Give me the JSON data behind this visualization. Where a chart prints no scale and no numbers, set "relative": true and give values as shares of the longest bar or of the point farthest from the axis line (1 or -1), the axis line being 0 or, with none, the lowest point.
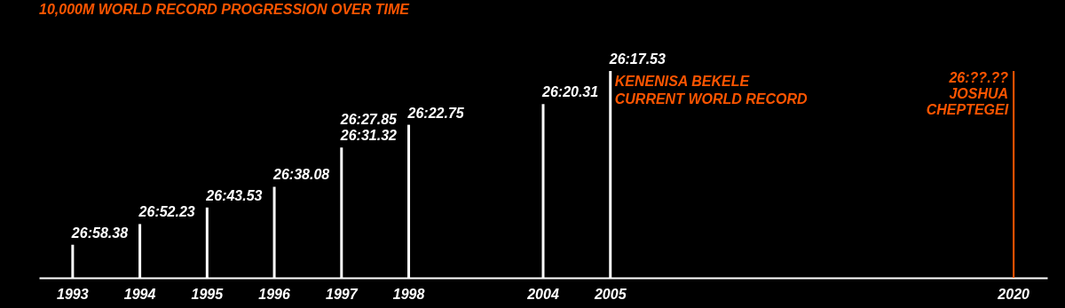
{
  "chart_data": {
    "type": "bar",
    "title": "10,000M WORLD RECORD PROGRESSION OVER TIME",
    "categories": [
      "1993",
      "1994",
      "1995",
      "1996",
      "1997",
      "1998",
      null,
      "2004",
      "2005",
      null,
      null,
      null,
      null,
      null,
      "2020"
    ],
    "values": [
      0.16,
      0.26,
      0.34,
      0.44,
      0.63,
      0.74,
      null,
      0.84,
      1,
      null,
      null,
      null,
      null,
      null,
      null
    ],
    "color": "#ffffff",
    "relative": true,
    "tick_labels": "x",
    "annotations": [
      {
        "text": "26:58.38",
        "x": "1993",
        "y": 0.16
      },
      {
        "text": "26:52.23",
        "x": "1994",
        "y": 0.26
      },
      {
        "text": "26:43.53",
        "x": "1995",
        "y": 0.34
      },
      {
        "text": "26:38.08",
        "x": "1996",
        "y": 0.44
      },
      {
        "text": "26:27.85",
        "x": "1997",
        "y": 0.63
      },
      {
        "text": "26:31.32",
        "x": "1997",
        "y": 0.63
      },
      {
        "text": "26:22.75",
        "x": "1998",
        "y": 0.74
      },
      {
        "text": "26:20.31",
        "x": "2004",
        "y": 0.84
      },
      {
        "text": "26:17.53",
        "x": "2005",
        "y": 1
      },
      "KENENISA BEKELE",
      "CURRENT WORLD RECORD"
    ],
    "ref_lines": [
      {
        "axis": "x",
        "value": "2020",
        "label": "26:??.??\nJOSHUA\nCHEPTEGEI",
        "color": "#ff5500"
      }
    ]
  }
}
